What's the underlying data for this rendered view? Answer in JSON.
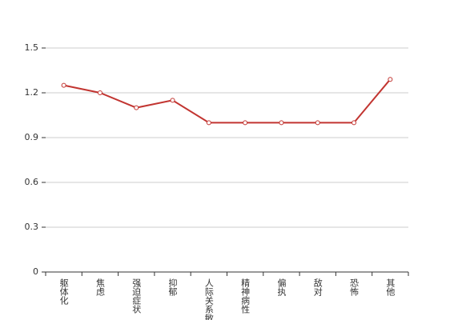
{
  "chart_data": {
    "type": "line",
    "categories": [
      "躯体化",
      "焦虑",
      "强迫症状",
      "抑郁",
      "人际关系敏感",
      "精神病性",
      "偏执",
      "敌对",
      "恐怖",
      "其他"
    ],
    "series": [
      {
        "color": "#c23531",
        "values": [
          1.25,
          1.2,
          1.1,
          1.15,
          1.0,
          1.0,
          1.0,
          1.0,
          1.0,
          1.29
        ]
      }
    ],
    "ylim": [
      0,
      1.5
    ],
    "yticks": [
      0,
      0.3,
      0.6,
      0.9,
      1.2,
      1.5
    ],
    "grid": true
  }
}
